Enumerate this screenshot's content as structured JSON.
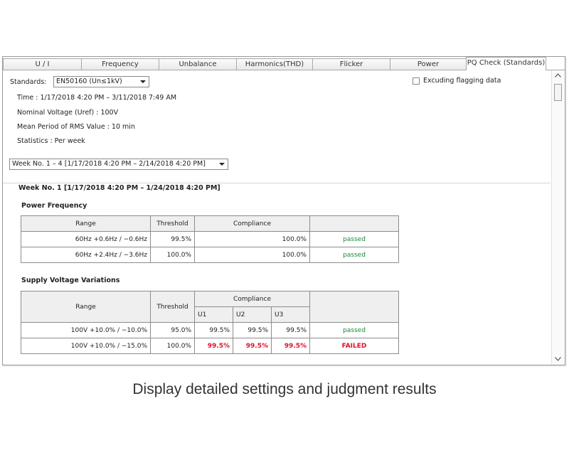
{
  "tabs": [
    {
      "label": "U / I"
    },
    {
      "label": "Frequency"
    },
    {
      "label": "Unbalance"
    },
    {
      "label": "Harmonics(THD)"
    },
    {
      "label": "Flicker"
    },
    {
      "label": "Power"
    },
    {
      "label": "PQ Check (Standards)"
    }
  ],
  "settings": {
    "standards_label": "Standards:",
    "standards_value": "EN50160 (Un≤1kV)",
    "excluding_label": "Excuding flagging data",
    "time": "Time :  1/17/2018 4:20 PM – 3/11/2018 7:49 AM",
    "nominal": "Nominal Voltage (Uref) :  100V",
    "mean": "Mean Period of RMS Value :  10 min",
    "stats": "Statistics :  Per week",
    "week_select": "Week No. 1 – 4 [1/17/2018 4:20 PM – 2/14/2018 4:20 PM]"
  },
  "week_title": "Week No. 1 [1/17/2018 4:20 PM – 1/24/2018 4:20 PM]",
  "power_frequency": {
    "title": "Power Frequency",
    "headers": {
      "range": "Range",
      "threshold": "Threshold",
      "compliance": "Compliance"
    },
    "rows": [
      {
        "range": "60Hz +0.6Hz / −0.6Hz",
        "threshold": "99.5%",
        "compliance": "100.0%",
        "result": "passed"
      },
      {
        "range": "60Hz +2.4Hz / −3.6Hz",
        "threshold": "100.0%",
        "compliance": "100.0%",
        "result": "passed"
      }
    ]
  },
  "supply_voltage": {
    "title": "Supply Voltage Variations",
    "headers": {
      "range": "Range",
      "threshold": "Threshold",
      "compliance": "Compliance",
      "u1": "U1",
      "u2": "U2",
      "u3": "U3"
    },
    "rows": [
      {
        "range": "100V  +10.0% / −10.0%",
        "threshold": "95.0%",
        "u1": "99.5%",
        "u2": "99.5%",
        "u3": "99.5%",
        "result": "passed"
      },
      {
        "range": "100V  +10.0% / −15.0%",
        "threshold": "100.0%",
        "u1": "99.5%",
        "u2": "99.5%",
        "u3": "99.5%",
        "result": "FAILED"
      }
    ]
  },
  "caption": "Display detailed settings and judgment results",
  "colors": {
    "passed": "#1a8a3a",
    "failed": "#e0102b"
  }
}
